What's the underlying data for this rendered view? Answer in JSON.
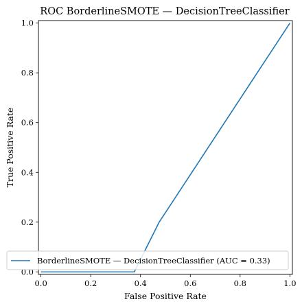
{
  "chart_data": {
    "type": "line",
    "title": "ROC BorderlineSMOTE — DecisionTreeClassifier",
    "xlabel": "False Positive Rate",
    "ylabel": "True Positive Rate",
    "xlim": [
      -0.01,
      1.01
    ],
    "ylim": [
      -0.01,
      1.01
    ],
    "xticks": [
      "0.0",
      "0.2",
      "0.4",
      "0.6",
      "0.8",
      "1.0"
    ],
    "yticks": [
      "0.0",
      "0.2",
      "0.4",
      "0.6",
      "0.8",
      "1.0"
    ],
    "grid": false,
    "legend_position": "lower-right",
    "series": [
      {
        "name": "BorderlineSMOTE — DecisionTreeClassifier (AUC = 0.33)",
        "color": "#1f77b4",
        "x": [
          0.0,
          0.375,
          0.475,
          1.0
        ],
        "y": [
          0.0,
          0.0,
          0.2,
          1.0
        ]
      }
    ]
  }
}
